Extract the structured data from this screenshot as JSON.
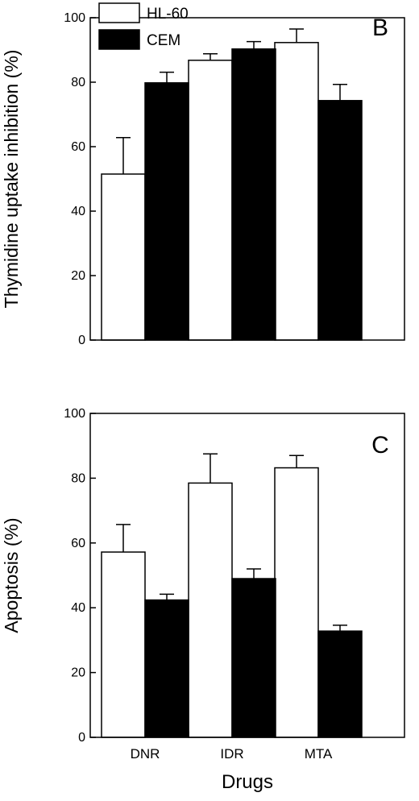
{
  "chart_data": [
    {
      "type": "bar",
      "panel_label": "B",
      "categories": [
        "DNR",
        "IDR",
        "MTA"
      ],
      "ylabel": "Thymidine uptake inhibition (%)",
      "ylim": [
        0,
        100
      ],
      "yticks": [
        0,
        20,
        40,
        60,
        80,
        100
      ],
      "show_category_labels": false,
      "legend": {
        "placement": "top-left"
      },
      "series": [
        {
          "name": "HL-60",
          "color": "#ffffff",
          "values": [
            51.5,
            86.8,
            92.3
          ],
          "errors": [
            11.3,
            2.0,
            4.2
          ]
        },
        {
          "name": "CEM",
          "color": "#000000",
          "values": [
            79.8,
            90.3,
            74.3
          ],
          "errors": [
            3.3,
            2.3,
            5.0
          ]
        }
      ]
    },
    {
      "type": "bar",
      "panel_label": "C",
      "categories": [
        "DNR",
        "IDR",
        "MTA"
      ],
      "ylabel": "Apoptosis (%)",
      "xlabel": "Drugs",
      "ylim": [
        0,
        100
      ],
      "yticks": [
        0,
        20,
        40,
        60,
        80,
        100
      ],
      "show_category_labels": true,
      "series": [
        {
          "name": "HL-60",
          "color": "#ffffff",
          "values": [
            57.2,
            78.5,
            83.2
          ],
          "errors": [
            8.5,
            9.0,
            3.8
          ]
        },
        {
          "name": "CEM",
          "color": "#000000",
          "values": [
            42.4,
            49.0,
            32.8
          ],
          "errors": [
            1.8,
            3.0,
            1.8
          ]
        }
      ]
    }
  ]
}
